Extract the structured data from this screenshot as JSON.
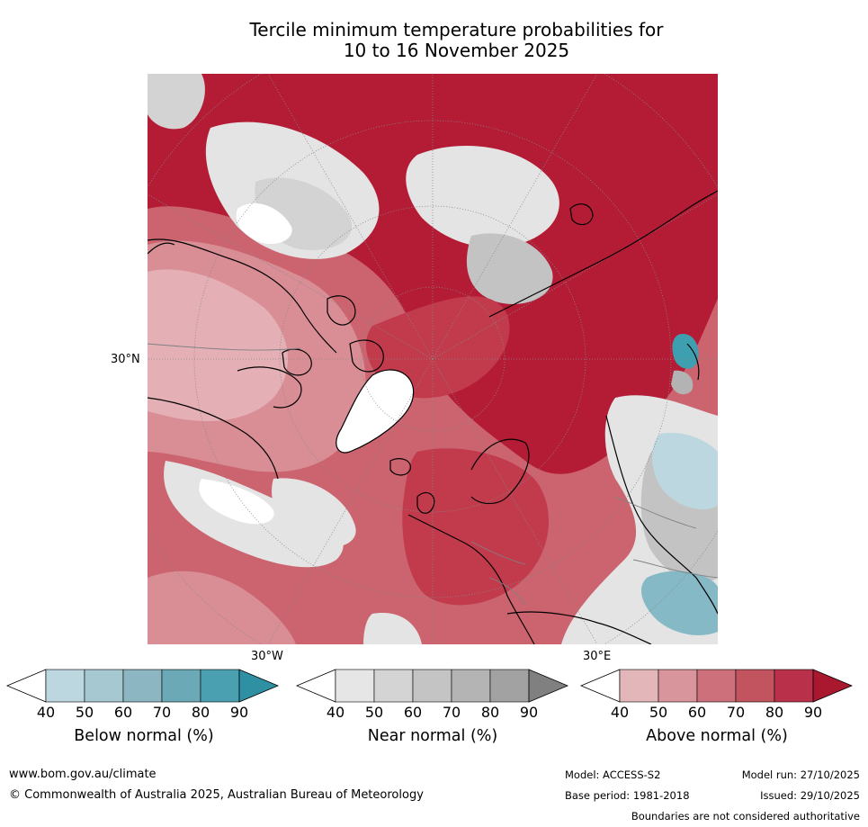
{
  "title": {
    "line1": "Tercile minimum temperature probabilities for",
    "line2": "10 to 16 November 2025"
  },
  "map": {
    "lat_label": "30°N",
    "lon_labels": [
      "30°W",
      "30°E"
    ],
    "colors": {
      "above_90": "#b41c36",
      "above_80": "#c13b4d",
      "above_70": "#cc6470",
      "above_60": "#d98d95",
      "above_50": "#e4b0b6",
      "near_50": "#e4e4e4",
      "near_60": "#d3d3d3",
      "near_70": "#c3c3c3",
      "near_80": "#b3b3b3",
      "below_50": "#bcd7df",
      "below_70": "#86b9c6",
      "below_90": "#3e9fb0",
      "white": "#ffffff",
      "coast": "#000000",
      "border": "#808080"
    }
  },
  "colorbars": [
    {
      "name": "below",
      "title": "Below normal (%)",
      "ticks": [
        "40",
        "50",
        "60",
        "70",
        "80",
        "90"
      ],
      "colors": [
        "#bcd7df",
        "#a6c8d0",
        "#8db6c3",
        "#6aa9b5",
        "#4aa0b0"
      ],
      "extend_color": "#2f8fa3"
    },
    {
      "name": "near",
      "title": "Near normal (%)",
      "ticks": [
        "40",
        "50",
        "60",
        "70",
        "80",
        "90"
      ],
      "colors": [
        "#e6e6e6",
        "#d4d4d4",
        "#c4c4c4",
        "#b4b4b4",
        "#a2a2a2"
      ],
      "extend_color": "#808080"
    },
    {
      "name": "above",
      "title": "Above normal (%)",
      "ticks": [
        "40",
        "50",
        "60",
        "70",
        "80",
        "90"
      ],
      "colors": [
        "#e3b6ba",
        "#d9959c",
        "#cd707b",
        "#c2545f",
        "#b9304a"
      ],
      "extend_color": "#a9182f"
    }
  ],
  "footer": {
    "url": "www.bom.gov.au/climate",
    "copyright": "© Commonwealth of Australia 2025, Australian Bureau of Meteorology",
    "model": "Model: ACCESS-S2",
    "model_run": "Model run: 27/10/2025",
    "base_period": "Base period: 1981-2018",
    "issued": "Issued: 29/10/2025",
    "disclaimer": "Boundaries are not considered authoritative"
  }
}
